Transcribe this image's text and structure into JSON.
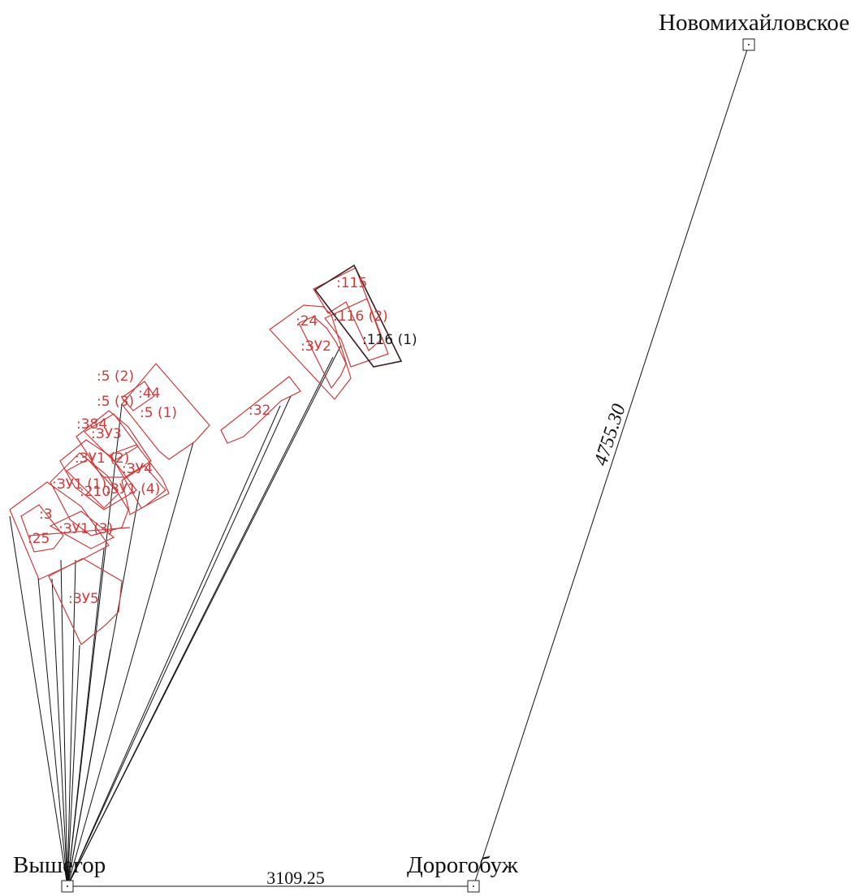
{
  "points": [
    {
      "name": "Новомихайловское"
    },
    {
      "name": "Вышегор"
    },
    {
      "name": "Дорогобуж"
    }
  ],
  "distances": [
    {
      "from": "Вышегор",
      "to": "Дорогобуж",
      "value": "3109.25"
    },
    {
      "from": "Дорогобуж",
      "to": "Новомихайловское",
      "value": "4755.30"
    }
  ],
  "parcels": [
    {
      "label": ":115",
      "color": "red"
    },
    {
      "label": ":116 (2)",
      "color": "red"
    },
    {
      "label": ":116 (1)",
      "color": "dark"
    },
    {
      "label": ":24",
      "color": "red"
    },
    {
      "label": ":ЗУ2",
      "color": "red"
    },
    {
      "label": ":32",
      "color": "red"
    },
    {
      "label": ":5 (2)",
      "color": "red"
    },
    {
      "label": ":44",
      "color": "red"
    },
    {
      "label": ":5 (3)",
      "color": "red"
    },
    {
      "label": ":5 (1)",
      "color": "red"
    },
    {
      "label": ":384",
      "color": "red"
    },
    {
      "label": ":ЗУ3",
      "color": "red"
    },
    {
      "label": ":ЗУ1 (2)",
      "color": "red"
    },
    {
      "label": ":ЗУ4",
      "color": "red"
    },
    {
      "label": ":ЗУ1 (1)",
      "color": "red"
    },
    {
      "label": ":210",
      "color": "red"
    },
    {
      "label": ":ЗУ1 (4)",
      "color": "red"
    },
    {
      "label": ":3",
      "color": "red"
    },
    {
      "label": ":ЗУ1 (3)",
      "color": "red"
    },
    {
      "label": ":25",
      "color": "red"
    },
    {
      "label": ":ЗУ5",
      "color": "red"
    }
  ],
  "colors": {
    "parcel": "#d03a3a",
    "highlight": "#3b1a1a",
    "line": "#111111",
    "background": "#ffffff"
  }
}
